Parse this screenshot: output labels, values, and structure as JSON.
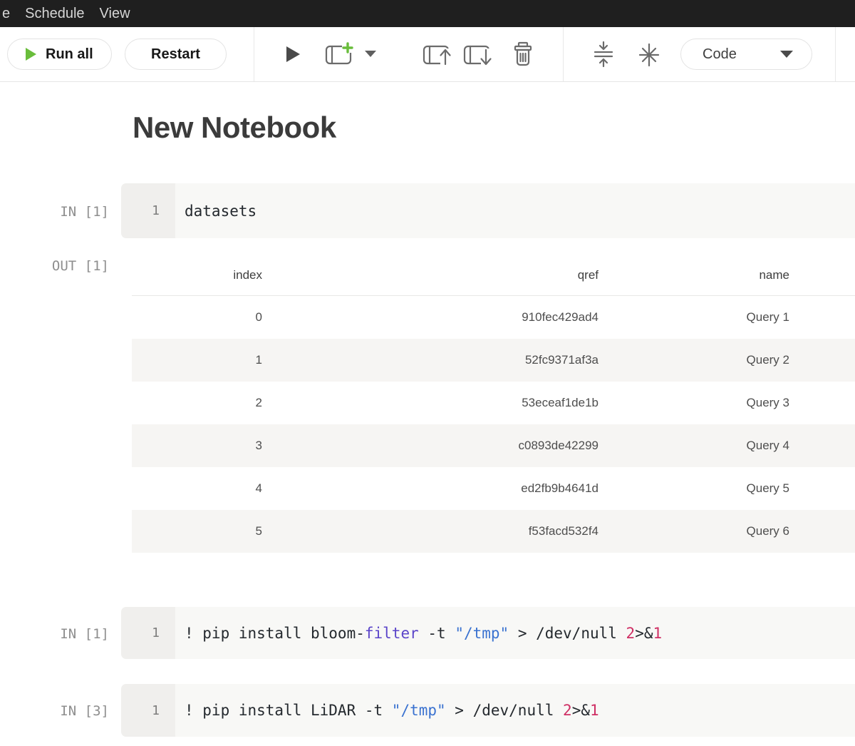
{
  "colors": {
    "accent-green": "#69bd3b",
    "menubar-bg": "#1f1f1f",
    "gutter": "#f0efed",
    "cellbg": "#f8f8f6",
    "stripe": "#f6f5f3",
    "syntax-plain": "#24292e",
    "syntax-builtin": "#5b45c9",
    "syntax-string": "#3a72d0",
    "syntax-number": "#cf2f64"
  },
  "menu_bar": {
    "items": [
      "e",
      "Schedule",
      "View"
    ]
  },
  "toolbar": {
    "run_all_label": "Run all",
    "restart_label": "Restart",
    "code_dropdown_value": "Code",
    "icons": [
      "run-cell-icon",
      "add-cell-icon",
      "move-cell-up-icon",
      "move-cell-down-icon",
      "delete-cell-icon",
      "collapse-cells-icon",
      "format-icon"
    ]
  },
  "page_title": "New Notebook",
  "cells": [
    {
      "label": "IN [1]",
      "line_number": "1",
      "tokens": [
        {
          "t": "datasets",
          "c": "plain"
        }
      ]
    },
    {
      "label": "IN [1]",
      "line_number": "1",
      "tokens": [
        {
          "t": "! pip install bloom-",
          "c": "plain"
        },
        {
          "t": "filter",
          "c": "builtin"
        },
        {
          "t": " -t ",
          "c": "plain"
        },
        {
          "t": "\"/tmp\"",
          "c": "string"
        },
        {
          "t": " > /dev/null ",
          "c": "plain"
        },
        {
          "t": "2",
          "c": "number"
        },
        {
          "t": ">&",
          "c": "plain"
        },
        {
          "t": "1",
          "c": "number"
        }
      ]
    },
    {
      "label": "IN [3]",
      "line_number": "1",
      "tokens": [
        {
          "t": "! pip install LiDAR -t ",
          "c": "plain"
        },
        {
          "t": "\"/tmp\"",
          "c": "string"
        },
        {
          "t": " > /dev/null ",
          "c": "plain"
        },
        {
          "t": "2",
          "c": "number"
        },
        {
          "t": ">&",
          "c": "plain"
        },
        {
          "t": "1",
          "c": "number"
        }
      ]
    }
  ],
  "output": {
    "label": "OUT [1]",
    "table": {
      "columns": [
        "index",
        "qref",
        "name"
      ],
      "rows": [
        [
          "0",
          "910fec429ad4",
          "Query 1"
        ],
        [
          "1",
          "52fc9371af3a",
          "Query 2"
        ],
        [
          "2",
          "53eceaf1de1b",
          "Query 3"
        ],
        [
          "3",
          "c0893de42299",
          "Query 4"
        ],
        [
          "4",
          "ed2fb9b4641d",
          "Query 5"
        ],
        [
          "5",
          "f53facd532f4",
          "Query 6"
        ]
      ]
    }
  }
}
